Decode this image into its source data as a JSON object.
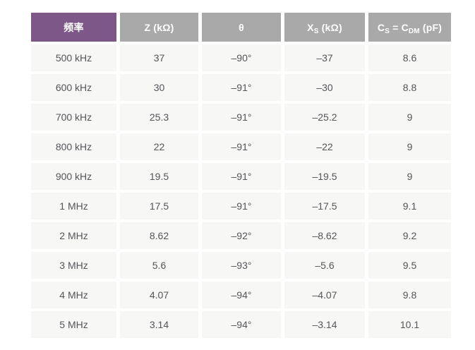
{
  "colors": {
    "accent_purple": "#7d5787",
    "header_gray": "#a9a9a9",
    "row_bg": "#f7f7f6",
    "header_text": "#ffffff",
    "body_text": "#55555a",
    "page_bg": "#ffffff"
  },
  "table": {
    "header": {
      "frequency": "频率",
      "z": "Z (kΩ)",
      "theta": "θ",
      "xs": {
        "t1": "X",
        "s1": "S",
        "t2": " (kΩ)"
      },
      "cs": {
        "t1": "C",
        "s1": "S",
        "t2": " = C",
        "s2": "DM",
        "t3": " (pF)"
      }
    },
    "rows": [
      [
        "500 kHz",
        "37",
        "–90°",
        "–37",
        "8.6"
      ],
      [
        "600 kHz",
        "30",
        "–91°",
        "–30",
        "8.8"
      ],
      [
        "700 kHz",
        "25.3",
        "–91°",
        "–25.2",
        "9"
      ],
      [
        "800 kHz",
        "22",
        "–91°",
        "–22",
        "9"
      ],
      [
        "900 kHz",
        "19.5",
        "–91°",
        "–19.5",
        "9"
      ],
      [
        "1 MHz",
        "17.5",
        "–91°",
        "–17.5",
        "9.1"
      ],
      [
        "2 MHz",
        "8.62",
        "–92°",
        "–8.62",
        "9.2"
      ],
      [
        "3 MHz",
        "5.6",
        "–93°",
        "–5.6",
        "9.5"
      ],
      [
        "4 MHz",
        "4.07",
        "–94°",
        "–4.07",
        "9.8"
      ],
      [
        "5 MHz",
        "3.14",
        "–94°",
        "–3.14",
        "10.1"
      ]
    ]
  },
  "chart_data": {
    "type": "table",
    "title": "",
    "columns": [
      "频率",
      "Z (kΩ)",
      "θ",
      "X_S (kΩ)",
      "C_S = C_DM (pF)"
    ],
    "rows": [
      [
        "500 kHz",
        37,
        -90,
        -37,
        8.6
      ],
      [
        "600 kHz",
        30,
        -91,
        -30,
        8.8
      ],
      [
        "700 kHz",
        25.3,
        -91,
        -25.2,
        9
      ],
      [
        "800 kHz",
        22,
        -91,
        -22,
        9
      ],
      [
        "900 kHz",
        19.5,
        -91,
        -19.5,
        9
      ],
      [
        "1 MHz",
        17.5,
        -91,
        -17.5,
        9.1
      ],
      [
        "2 MHz",
        8.62,
        -92,
        -8.62,
        9.2
      ],
      [
        "3 MHz",
        5.6,
        -93,
        -5.6,
        9.5
      ],
      [
        "4 MHz",
        4.07,
        -94,
        -4.07,
        9.8
      ],
      [
        "5 MHz",
        3.14,
        -94,
        -3.14,
        10.1
      ]
    ],
    "series": [
      {
        "name": "频率",
        "values": [
          "500 kHz",
          "600 kHz",
          "700 kHz",
          "800 kHz",
          "900 kHz",
          "1 MHz",
          "2 MHz",
          "3 MHz",
          "4 MHz",
          "5 MHz"
        ]
      },
      {
        "name": "Z (kΩ)",
        "values": [
          37,
          30,
          25.3,
          22,
          19.5,
          17.5,
          8.62,
          5.6,
          4.07,
          3.14
        ]
      },
      {
        "name": "θ (deg)",
        "values": [
          -90,
          -91,
          -91,
          -91,
          -91,
          -91,
          -92,
          -93,
          -94,
          -94
        ]
      },
      {
        "name": "X_S (kΩ)",
        "values": [
          -37,
          -30,
          -25.2,
          -22,
          -19.5,
          -17.5,
          -8.62,
          -5.6,
          -4.07,
          -3.14
        ]
      },
      {
        "name": "C_S = C_DM (pF)",
        "values": [
          8.6,
          8.8,
          9,
          9,
          9,
          9.1,
          9.2,
          9.5,
          9.8,
          10.1
        ]
      }
    ]
  }
}
